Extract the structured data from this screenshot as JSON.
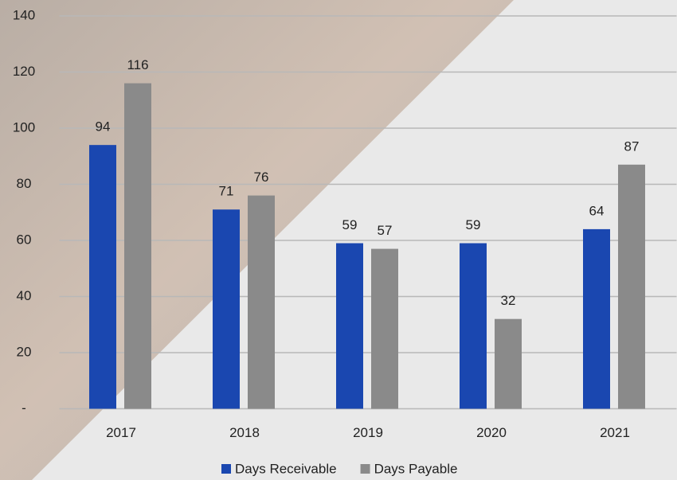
{
  "chart_data": {
    "type": "bar",
    "categories": [
      "2017",
      "2018",
      "2019",
      "2020",
      "2021"
    ],
    "series": [
      {
        "name": "Days Receivable",
        "color": "#1a47b0",
        "values": [
          94,
          71,
          59,
          59,
          64
        ]
      },
      {
        "name": "Days Payable",
        "color": "#8a8a8a",
        "values": [
          116,
          76,
          57,
          32,
          87
        ]
      }
    ],
    "ylim": [
      0,
      140
    ],
    "yticks": [
      {
        "value": 0,
        "label": "-"
      },
      20,
      40,
      60,
      80,
      100,
      120,
      140
    ],
    "grid": true,
    "legend": "bottom"
  }
}
